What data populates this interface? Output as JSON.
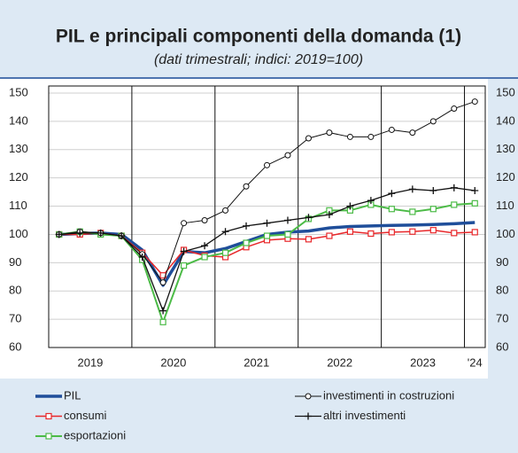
{
  "chart_data": {
    "type": "line",
    "title": "PIL e principali componenti della domanda (1)",
    "subtitle": "(dati trimestrali; indici: 2019=100)",
    "categories": [
      null,
      null,
      null,
      null,
      null,
      null,
      null,
      null,
      null,
      null,
      null,
      null,
      null,
      null,
      null,
      null,
      null,
      null,
      null,
      null,
      null
    ],
    "year_labels": [
      "2019",
      "2020",
      "2021",
      "2022",
      "2023",
      "'24"
    ],
    "ylim": [
      60,
      150
    ],
    "yticks": [
      60,
      70,
      80,
      90,
      100,
      110,
      120,
      130,
      140,
      150
    ],
    "grid": true,
    "series": [
      {
        "name": "PIL",
        "color": "#1f4e9a",
        "marker": null,
        "width": 3.5,
        "values": [
          100,
          100.3,
          100.5,
          100,
          94.5,
          82,
          94,
          93.5,
          95,
          97.5,
          100,
          100.8,
          101.2,
          102.3,
          102.8,
          103,
          103.2,
          103.3,
          103.5,
          103.8,
          104.2
        ]
      },
      {
        "name": "consumi",
        "color": "#e8282b",
        "marker": "square",
        "width": 1.5,
        "values": [
          100,
          100,
          100.5,
          99.5,
          93.5,
          85.5,
          94.5,
          92.5,
          92,
          95.5,
          98,
          98.5,
          98.3,
          99.5,
          101,
          100.3,
          100.8,
          101,
          101.5,
          100.5,
          100.8
        ]
      },
      {
        "name": "esportazioni",
        "color": "#4cbb47",
        "marker": "square",
        "width": 2,
        "values": [
          100,
          101,
          100,
          99.5,
          91,
          69,
          89,
          92,
          93.5,
          97,
          99.5,
          100,
          105.5,
          108.5,
          108.5,
          110.5,
          109,
          108,
          109,
          110.5,
          111
        ]
      },
      {
        "name": "investimenti in costruzioni",
        "color": "#111111",
        "marker": "circle",
        "width": 1,
        "values": [
          100,
          101,
          100.5,
          99.5,
          93,
          83,
          104,
          105,
          108.5,
          117,
          124.5,
          128,
          134,
          136,
          134.5,
          134.5,
          137,
          136,
          140,
          144.5,
          147
        ]
      },
      {
        "name": "altri investimenti",
        "color": "#111111",
        "marker": "plus",
        "width": 1.3,
        "values": [
          100,
          100.5,
          100.5,
          99.5,
          92,
          73,
          94,
          96,
          101,
          103,
          104,
          105,
          106,
          107,
          110,
          112,
          114.5,
          116,
          115.5,
          116.5,
          115.5
        ]
      }
    ]
  }
}
